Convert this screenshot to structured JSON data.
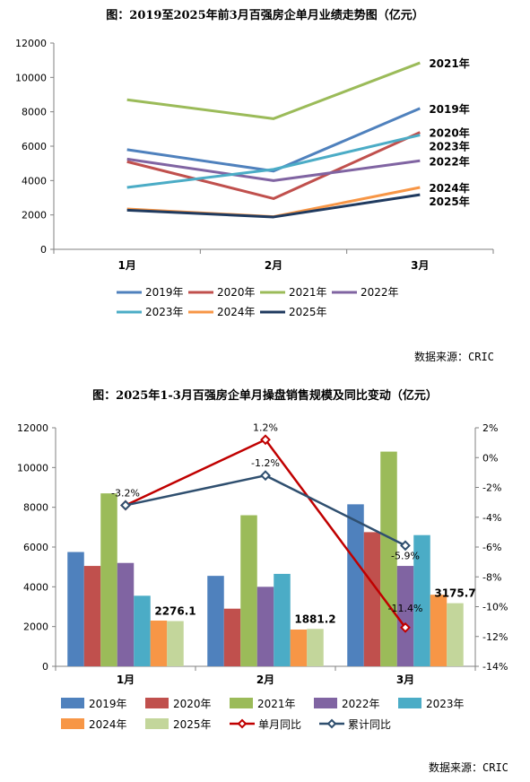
{
  "chart_data": [
    {
      "type": "line",
      "title": "图：2019至2025年前3月百强房企单月业绩走势图（亿元）",
      "categories": [
        "1月",
        "2月",
        "3月"
      ],
      "ylim": [
        0,
        12000
      ],
      "yticks": [
        "0",
        "2000",
        "4000",
        "6000",
        "8000",
        "10000",
        "12000"
      ],
      "legend_position": "bottom",
      "series": [
        {
          "name": "2019年",
          "values": [
            5800,
            4550,
            8200
          ],
          "color": "#4F81BD",
          "end_label": "2019年"
        },
        {
          "name": "2020年",
          "values": [
            5100,
            2950,
            6800
          ],
          "color": "#C0504D",
          "end_label": "2020年"
        },
        {
          "name": "2021年",
          "values": [
            8700,
            7600,
            10850
          ],
          "color": "#9BBB59",
          "end_label": "2021年"
        },
        {
          "name": "2022年",
          "values": [
            5250,
            4000,
            5150
          ],
          "color": "#8064A2",
          "end_label": "2022年"
        },
        {
          "name": "2023年",
          "values": [
            3600,
            4650,
            6650
          ],
          "color": "#4BACC6",
          "end_label": "2023年"
        },
        {
          "name": "2024年",
          "values": [
            2350,
            1900,
            3600
          ],
          "color": "#F79646",
          "end_label": "2024年"
        },
        {
          "name": "2025年",
          "values": [
            2276.1,
            1881.2,
            3175.7
          ],
          "color": "#1F3A5F",
          "end_label": "2025年"
        }
      ],
      "source": "数据来源：CRIC"
    },
    {
      "type": "bar",
      "title": "图：2025年1-3月百强房企单月操盘销售规模及同比变动（亿元）",
      "categories": [
        "1月",
        "2月",
        "3月"
      ],
      "ylim": [
        0,
        12000
      ],
      "yticks": [
        "0",
        "2000",
        "4000",
        "6000",
        "8000",
        "10000",
        "12000"
      ],
      "y2lim": [
        -14,
        2
      ],
      "y2ticks": [
        "-14%",
        "-12%",
        "-10%",
        "-8%",
        "-6%",
        "-4%",
        "-2%",
        "0%",
        "2%"
      ],
      "legend_position": "bottom",
      "series": [
        {
          "name": "2019年",
          "values": [
            5750,
            4550,
            8150
          ],
          "color": "#4F81BD"
        },
        {
          "name": "2020年",
          "values": [
            5050,
            2900,
            6750
          ],
          "color": "#C0504D"
        },
        {
          "name": "2021年",
          "values": [
            8700,
            7600,
            10800
          ],
          "color": "#9BBB59"
        },
        {
          "name": "2022年",
          "values": [
            5200,
            4000,
            5050
          ],
          "color": "#8064A2"
        },
        {
          "name": "2023年",
          "values": [
            3550,
            4650,
            6600
          ],
          "color": "#4BACC6"
        },
        {
          "name": "2024年",
          "values": [
            2300,
            1850,
            3600
          ],
          "color": "#F79646"
        },
        {
          "name": "2025年",
          "values": [
            2276.1,
            1881.2,
            3175.7
          ],
          "color": "#C3D69B",
          "data_labels": [
            "2276.1",
            "1881.2",
            "3175.7"
          ]
        }
      ],
      "line_series": [
        {
          "name": "单月同比",
          "values": [
            -3.2,
            1.2,
            -11.4
          ],
          "color": "#C00000",
          "data_labels": [
            "-3.2%",
            "1.2%",
            "-11.4%"
          ]
        },
        {
          "name": "累计同比",
          "values": [
            -3.2,
            -1.2,
            -5.9
          ],
          "color": "#2F4F6F",
          "data_labels": [
            "",
            "-1.2%",
            "-5.9%"
          ]
        }
      ],
      "source": "数据来源：CRIC"
    }
  ]
}
